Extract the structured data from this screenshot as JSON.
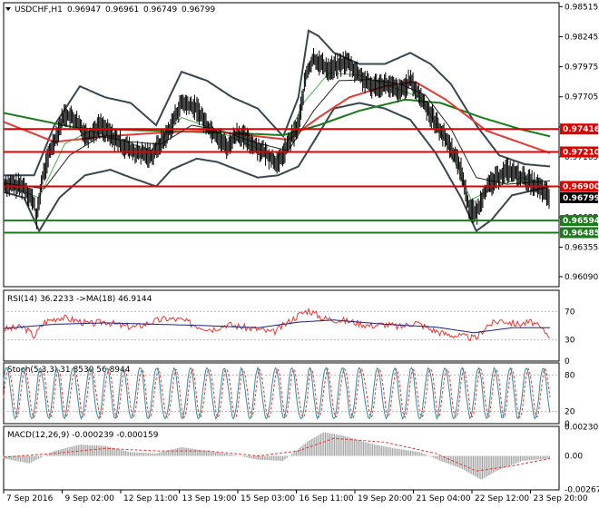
{
  "header": {
    "symbol": "USDCHF,H1",
    "ohlc": [
      "0.96947",
      "0.96961",
      "0.96749",
      "0.96799"
    ]
  },
  "colors": {
    "price": "#000000",
    "bollinger": "#37474f",
    "ema_fast": "#4caf50",
    "ema_mid": "#212121",
    "ma_red": "#e53935",
    "ma_green": "#1b7a1b",
    "level_red": "#e00000",
    "level_green": "#1b7a1b",
    "rsi": "#e53935",
    "rsi_ma": "#1a237e",
    "stoch_main": "#3a8a9a",
    "stoch_signal": "#e53935",
    "macd_hist": "#a0a0a0",
    "macd_signal": "#e53935"
  },
  "chart_data": [
    {
      "type": "line",
      "title": "USDCHF,H1",
      "ylim": [
        0.96,
        0.9855
      ],
      "y_ticks": [
        "0.98515",
        "0.98245",
        "0.97975",
        "0.97705",
        "0.97435",
        "0.97165",
        "0.96895",
        "0.96625",
        "0.96355",
        "0.96090"
      ],
      "x_labels": [
        "7 Sep 2016",
        "9 Sep 02:00",
        "12 Sep 11:00",
        "13 Sep 19:00",
        "15 Sep 03:00",
        "16 Sep 11:00",
        "19 Sep 20:00",
        "21 Sep 04:00",
        "22 Sep 12:00",
        "23 Sep 20:00"
      ],
      "price_path": [
        [
          0,
          0.9692
        ],
        [
          8,
          0.969
        ],
        [
          12,
          0.9675
        ],
        [
          13,
          0.966
        ],
        [
          15,
          0.9695
        ],
        [
          18,
          0.972
        ],
        [
          24,
          0.9755
        ],
        [
          28,
          0.975
        ],
        [
          33,
          0.9735
        ],
        [
          38,
          0.9745
        ],
        [
          45,
          0.973
        ],
        [
          52,
          0.972
        ],
        [
          58,
          0.9718
        ],
        [
          64,
          0.9735
        ],
        [
          70,
          0.9765
        ],
        [
          76,
          0.976
        ],
        [
          80,
          0.9745
        ],
        [
          84,
          0.9735
        ],
        [
          88,
          0.9725
        ],
        [
          92,
          0.9738
        ],
        [
          98,
          0.9728
        ],
        [
          104,
          0.9718
        ],
        [
          108,
          0.971
        ],
        [
          112,
          0.9728
        ],
        [
          116,
          0.9745
        ],
        [
          119,
          0.979
        ],
        [
          122,
          0.9805
        ],
        [
          128,
          0.9795
        ],
        [
          135,
          0.9802
        ],
        [
          140,
          0.979
        ],
        [
          144,
          0.978
        ],
        [
          150,
          0.9782
        ],
        [
          156,
          0.9775
        ],
        [
          160,
          0.9785
        ],
        [
          164,
          0.977
        ],
        [
          168,
          0.9755
        ],
        [
          172,
          0.974
        ],
        [
          176,
          0.9725
        ],
        [
          180,
          0.9705
        ],
        [
          183,
          0.9672
        ],
        [
          186,
          0.9665
        ],
        [
          189,
          0.9685
        ],
        [
          193,
          0.9695
        ],
        [
          198,
          0.9705
        ],
        [
          204,
          0.9698
        ],
        [
          210,
          0.969
        ],
        [
          215,
          0.968
        ]
      ],
      "price_x_range": [
        0,
        215
      ],
      "bollinger_upper": [
        [
          0,
          0.97
        ],
        [
          12,
          0.97
        ],
        [
          20,
          0.9745
        ],
        [
          30,
          0.978
        ],
        [
          40,
          0.977
        ],
        [
          50,
          0.9765
        ],
        [
          60,
          0.9745
        ],
        [
          70,
          0.9793
        ],
        [
          80,
          0.9785
        ],
        [
          90,
          0.977
        ],
        [
          100,
          0.976
        ],
        [
          110,
          0.9735
        ],
        [
          116,
          0.977
        ],
        [
          120,
          0.983
        ],
        [
          124,
          0.9825
        ],
        [
          130,
          0.981
        ],
        [
          140,
          0.98
        ],
        [
          150,
          0.98
        ],
        [
          160,
          0.981
        ],
        [
          168,
          0.98
        ],
        [
          176,
          0.9782
        ],
        [
          186,
          0.9745
        ],
        [
          195,
          0.9718
        ],
        [
          205,
          0.971
        ],
        [
          215,
          0.9708
        ]
      ],
      "bollinger_lower": [
        [
          0,
          0.9685
        ],
        [
          8,
          0.968
        ],
        [
          14,
          0.965
        ],
        [
          22,
          0.968
        ],
        [
          32,
          0.97
        ],
        [
          42,
          0.9705
        ],
        [
          50,
          0.9698
        ],
        [
          60,
          0.969
        ],
        [
          66,
          0.9705
        ],
        [
          76,
          0.9715
        ],
        [
          84,
          0.9712
        ],
        [
          92,
          0.9705
        ],
        [
          100,
          0.9698
        ],
        [
          108,
          0.97
        ],
        [
          116,
          0.9708
        ],
        [
          122,
          0.973
        ],
        [
          130,
          0.976
        ],
        [
          140,
          0.9765
        ],
        [
          150,
          0.976
        ],
        [
          160,
          0.975
        ],
        [
          170,
          0.972
        ],
        [
          180,
          0.968
        ],
        [
          186,
          0.965
        ],
        [
          192,
          0.966
        ],
        [
          200,
          0.9682
        ],
        [
          215,
          0.969
        ]
      ],
      "ema_fast": [
        [
          0,
          0.9692
        ],
        [
          14,
          0.968
        ],
        [
          24,
          0.9728
        ],
        [
          34,
          0.974
        ],
        [
          46,
          0.9732
        ],
        [
          58,
          0.9722
        ],
        [
          70,
          0.9752
        ],
        [
          82,
          0.9742
        ],
        [
          94,
          0.973
        ],
        [
          108,
          0.9716
        ],
        [
          118,
          0.9765
        ],
        [
          128,
          0.9792
        ],
        [
          140,
          0.979
        ],
        [
          152,
          0.978
        ],
        [
          164,
          0.977
        ],
        [
          174,
          0.973
        ],
        [
          184,
          0.9678
        ],
        [
          194,
          0.969
        ],
        [
          204,
          0.9698
        ],
        [
          215,
          0.969
        ]
      ],
      "ema_mid": [
        [
          0,
          0.9693
        ],
        [
          16,
          0.9688
        ],
        [
          26,
          0.9718
        ],
        [
          38,
          0.9735
        ],
        [
          50,
          0.973
        ],
        [
          62,
          0.9728
        ],
        [
          74,
          0.9745
        ],
        [
          86,
          0.974
        ],
        [
          98,
          0.973
        ],
        [
          112,
          0.9722
        ],
        [
          122,
          0.9758
        ],
        [
          132,
          0.9785
        ],
        [
          144,
          0.9786
        ],
        [
          156,
          0.9782
        ],
        [
          166,
          0.9772
        ],
        [
          176,
          0.9742
        ],
        [
          186,
          0.9698
        ],
        [
          198,
          0.9692
        ],
        [
          215,
          0.9695
        ]
      ],
      "ma_red": [
        [
          0,
          0.9748
        ],
        [
          20,
          0.973
        ],
        [
          40,
          0.9735
        ],
        [
          60,
          0.9738
        ],
        [
          80,
          0.974
        ],
        [
          100,
          0.9735
        ],
        [
          112,
          0.9732
        ],
        [
          124,
          0.9752
        ],
        [
          136,
          0.977
        ],
        [
          150,
          0.978
        ],
        [
          162,
          0.9784
        ],
        [
          174,
          0.9768
        ],
        [
          190,
          0.974
        ],
        [
          205,
          0.9728
        ],
        [
          215,
          0.972
        ]
      ],
      "ma_green": [
        [
          0,
          0.9756
        ],
        [
          30,
          0.9742
        ],
        [
          60,
          0.974
        ],
        [
          90,
          0.9738
        ],
        [
          110,
          0.9736
        ],
        [
          124,
          0.9745
        ],
        [
          140,
          0.9758
        ],
        [
          158,
          0.9768
        ],
        [
          172,
          0.9765
        ],
        [
          188,
          0.9752
        ],
        [
          204,
          0.9741
        ],
        [
          215,
          0.9735
        ]
      ],
      "levels": [
        {
          "label": "0.97416",
          "value": 0.97416,
          "color": "red"
        },
        {
          "label": "0.97210",
          "value": 0.9721,
          "color": "red"
        },
        {
          "label": "0.96900",
          "value": 0.969,
          "color": "red"
        },
        {
          "label": "0.96799",
          "value": 0.96799,
          "color": "current"
        },
        {
          "label": "0.96594",
          "value": 0.96594,
          "color": "green"
        },
        {
          "label": "0.96485",
          "value": 0.96485,
          "color": "green"
        }
      ]
    },
    {
      "type": "line",
      "title": "RSI(14) 36.2233 ->MA(18) 46.9144",
      "ylim": [
        0,
        100
      ],
      "y_ticks": [
        "70",
        "30",
        "0"
      ],
      "rsi": [
        [
          0,
          45
        ],
        [
          8,
          48
        ],
        [
          12,
          35
        ],
        [
          16,
          55
        ],
        [
          22,
          62
        ],
        [
          28,
          58
        ],
        [
          34,
          52
        ],
        [
          40,
          56
        ],
        [
          46,
          50
        ],
        [
          52,
          48
        ],
        [
          58,
          55
        ],
        [
          64,
          60
        ],
        [
          70,
          58
        ],
        [
          76,
          50
        ],
        [
          82,
          45
        ],
        [
          88,
          52
        ],
        [
          94,
          48
        ],
        [
          100,
          45
        ],
        [
          106,
          40
        ],
        [
          112,
          55
        ],
        [
          116,
          65
        ],
        [
          120,
          72
        ],
        [
          126,
          60
        ],
        [
          132,
          58
        ],
        [
          138,
          55
        ],
        [
          144,
          50
        ],
        [
          150,
          52
        ],
        [
          156,
          48
        ],
        [
          162,
          55
        ],
        [
          168,
          45
        ],
        [
          174,
          38
        ],
        [
          180,
          35
        ],
        [
          186,
          32
        ],
        [
          190,
          50
        ],
        [
          196,
          58
        ],
        [
          202,
          52
        ],
        [
          208,
          55
        ],
        [
          215,
          36
        ]
      ],
      "rsi_ma": [
        [
          0,
          46
        ],
        [
          20,
          52
        ],
        [
          40,
          54
        ],
        [
          60,
          52
        ],
        [
          80,
          50
        ],
        [
          100,
          47
        ],
        [
          116,
          55
        ],
        [
          130,
          58
        ],
        [
          150,
          52
        ],
        [
          170,
          48
        ],
        [
          185,
          40
        ],
        [
          200,
          47
        ],
        [
          215,
          47
        ]
      ]
    },
    {
      "type": "line",
      "title": "Stoch(5,3,3) 31.8530 56.8944",
      "ylim": [
        0,
        100
      ],
      "y_ticks": [
        "80",
        "20",
        "0"
      ],
      "stoch_value": 31.853,
      "signal_value": 56.8944
    },
    {
      "type": "bar",
      "title": "MACD(12,26,9) -0.000239 -0.000159",
      "ylim": [
        -0.00271,
        0.00236
      ],
      "y_ticks": [
        "0.002306",
        "0.00",
        "-0.002671"
      ],
      "hist": [
        [
          0,
          -0.0002
        ],
        [
          10,
          -0.0006
        ],
        [
          20,
          0.0004
        ],
        [
          30,
          0.0009
        ],
        [
          40,
          0.0008
        ],
        [
          50,
          0.0003
        ],
        [
          60,
          0.0002
        ],
        [
          70,
          0.0007
        ],
        [
          80,
          0.0004
        ],
        [
          90,
          0.0001
        ],
        [
          100,
          -0.0003
        ],
        [
          110,
          -0.0004
        ],
        [
          120,
          0.0012
        ],
        [
          126,
          0.0019
        ],
        [
          134,
          0.0016
        ],
        [
          144,
          0.001
        ],
        [
          154,
          0.0006
        ],
        [
          164,
          0.0003
        ],
        [
          172,
          -0.0004
        ],
        [
          180,
          -0.001
        ],
        [
          188,
          -0.0019
        ],
        [
          194,
          -0.0012
        ],
        [
          204,
          -0.0004
        ],
        [
          215,
          -0.0002
        ]
      ],
      "signal": [
        [
          0,
          -0.0001
        ],
        [
          20,
          0.0002
        ],
        [
          40,
          0.0006
        ],
        [
          60,
          0.0004
        ],
        [
          80,
          0.0004
        ],
        [
          100,
          0.0
        ],
        [
          116,
          0.0004
        ],
        [
          130,
          0.0014
        ],
        [
          150,
          0.0011
        ],
        [
          170,
          0.0002
        ],
        [
          186,
          -0.0012
        ],
        [
          200,
          -0.0008
        ],
        [
          215,
          -0.0002
        ]
      ]
    }
  ]
}
